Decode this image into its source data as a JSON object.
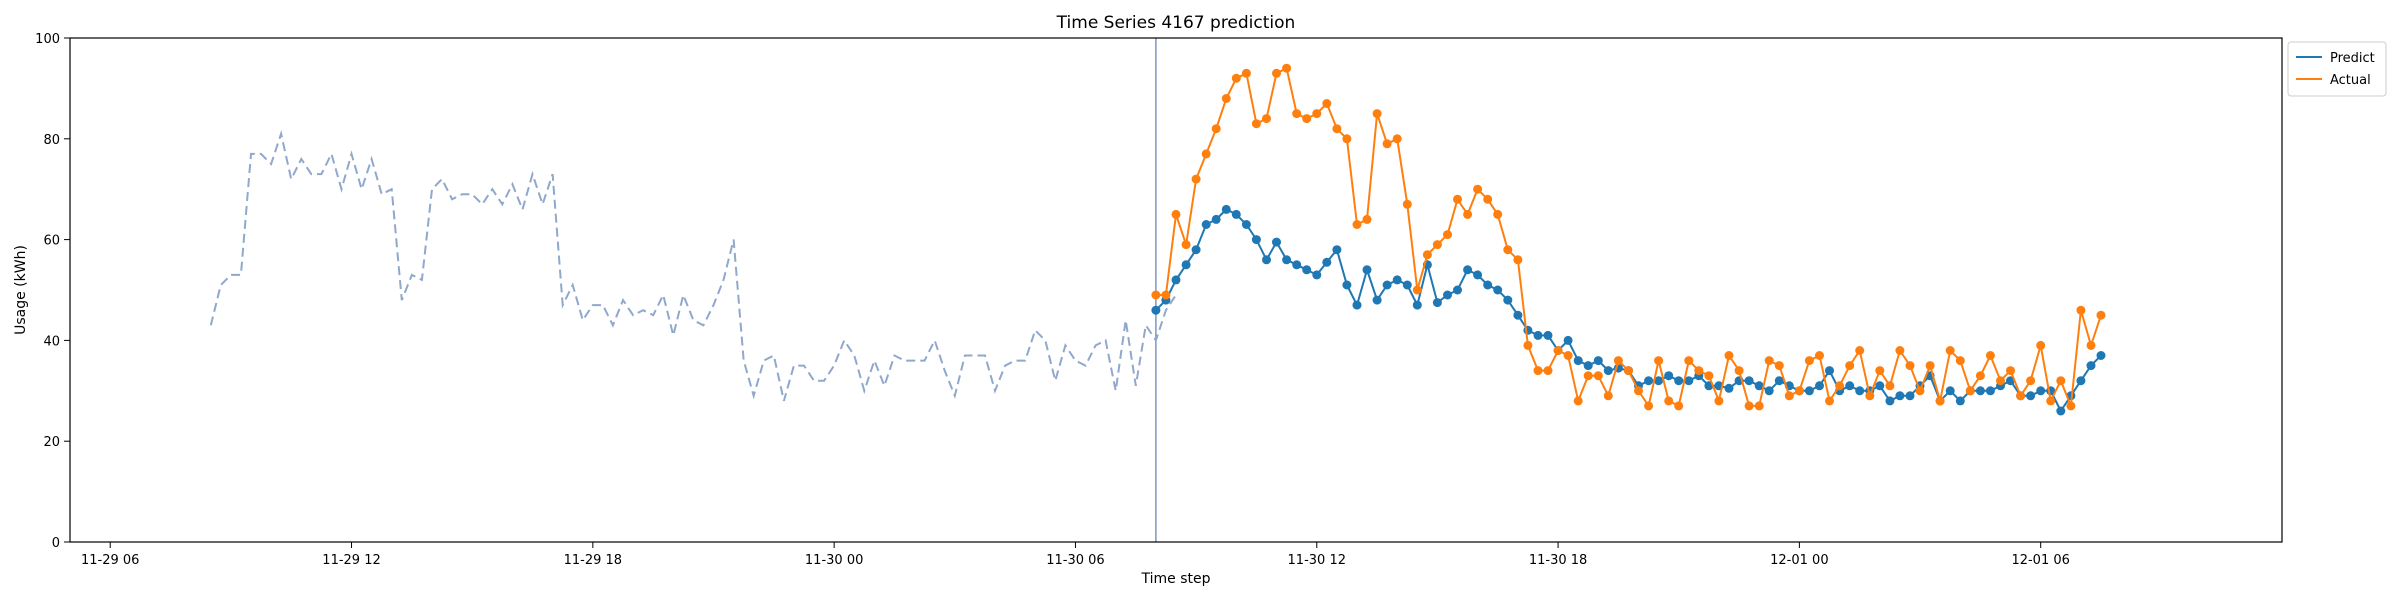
{
  "chart_data": {
    "type": "line",
    "title": "Time Series 4167 prediction",
    "xlabel": "Time step",
    "ylabel": "Usage (kWh)",
    "ylim": [
      0,
      100
    ],
    "yticks": [
      0,
      20,
      40,
      60,
      80,
      100
    ],
    "xlim": [
      "2023-11-29 05:00",
      "2023-12-01 12:00"
    ],
    "xtick_labels": [
      {
        "t": "2023-11-29 06:00",
        "label": "11-29 06"
      },
      {
        "t": "2023-11-29 12:00",
        "label": "11-29 12"
      },
      {
        "t": "2023-11-29 18:00",
        "label": "11-29 18"
      },
      {
        "t": "2023-11-30 00:00",
        "label": "11-30 00"
      },
      {
        "t": "2023-11-30 06:00",
        "label": "11-30 06"
      },
      {
        "t": "2023-11-30 12:00",
        "label": "11-30 12"
      },
      {
        "t": "2023-11-30 18:00",
        "label": "11-30 18"
      },
      {
        "t": "2023-12-01 00:00",
        "label": "12-01 00"
      },
      {
        "t": "2023-12-01 06:00",
        "label": "12-01 06"
      }
    ],
    "forecast_start": "2023-11-30 08:00",
    "legend_position": "top-right, outside plot",
    "history": {
      "start": "2023-11-29 08:30",
      "step_minutes": 15,
      "color": "#8fa8cc",
      "values": [
        43,
        51,
        53,
        53,
        77,
        77,
        75,
        81,
        72,
        76,
        73,
        73,
        77,
        70,
        77,
        70,
        76,
        69,
        70,
        48,
        53,
        52,
        70,
        72,
        68,
        69,
        69,
        67,
        70,
        67,
        71,
        66,
        73,
        67,
        73,
        47,
        51,
        44,
        47,
        47,
        43,
        48,
        45,
        46,
        45,
        49,
        41,
        49,
        44,
        43,
        47,
        52,
        60,
        36,
        29,
        36,
        37,
        28,
        35,
        35,
        32,
        32,
        35,
        40,
        37,
        30,
        36,
        31,
        37,
        36,
        36,
        36,
        40,
        34,
        29,
        37,
        37,
        37,
        30,
        35,
        36,
        36,
        42,
        40,
        32,
        39,
        36,
        35,
        39,
        40,
        30,
        44,
        31,
        43,
        40,
        46,
        49
      ]
    },
    "series": [
      {
        "name": "Predict",
        "color": "#1f77b4",
        "start": "2023-11-30 08:00",
        "step_minutes": 15,
        "values": [
          46,
          48,
          52,
          55,
          58,
          63,
          64,
          66,
          65,
          63,
          60,
          56,
          59.5,
          56,
          55,
          54,
          53,
          55.5,
          58,
          51,
          47,
          54,
          48,
          51,
          52,
          51,
          47,
          55,
          47.5,
          49,
          50,
          54,
          53,
          51,
          50,
          48,
          45,
          42,
          41,
          41,
          38,
          40,
          36,
          35,
          36,
          34,
          34.5,
          34,
          31,
          32,
          32,
          33,
          32,
          32,
          33,
          31,
          31,
          30.5,
          32,
          32,
          31,
          30,
          32,
          31,
          30,
          30,
          31,
          34,
          30,
          31,
          30,
          30,
          31,
          28,
          29,
          29,
          31,
          33,
          28,
          30,
          28,
          30,
          30,
          30,
          31,
          32,
          29,
          29,
          30,
          30,
          26,
          29,
          32,
          35,
          37
        ]
      },
      {
        "name": "Actual",
        "color": "#ff7f0e",
        "start": "2023-11-30 08:00",
        "step_minutes": 15,
        "values": [
          49,
          49,
          65,
          59,
          72,
          77,
          82,
          88,
          92,
          93,
          83,
          84,
          93,
          94,
          85,
          84,
          85,
          87,
          82,
          80,
          63,
          64,
          85,
          79,
          80,
          67,
          50,
          57,
          59,
          61,
          68,
          65,
          70,
          68,
          65,
          58,
          56,
          39,
          34,
          34,
          38,
          37,
          28,
          33,
          33,
          29,
          36,
          34,
          30,
          27,
          36,
          28,
          27,
          36,
          34,
          33,
          28,
          37,
          34,
          27,
          27,
          36,
          35,
          29,
          30,
          36,
          37,
          28,
          31,
          35,
          38,
          29,
          34,
          31,
          38,
          35,
          30,
          35,
          28,
          38,
          36,
          30,
          33,
          37,
          32,
          34,
          29,
          32,
          39,
          28,
          32,
          27,
          46,
          39,
          45
        ]
      }
    ]
  }
}
